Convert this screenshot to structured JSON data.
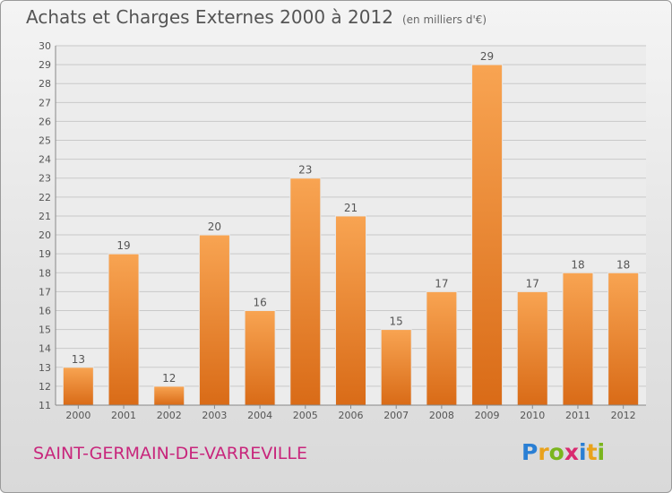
{
  "header": {
    "title": "Achats et Charges Externes 2000 à 2012",
    "unit": "(en milliers d'€)"
  },
  "footer": {
    "city": "SAINT-GERMAIN-DE-VARREVILLE",
    "logo_letters": [
      "P",
      "r",
      "o",
      "x",
      "i",
      "t",
      "i"
    ],
    "logo_colors": [
      "#2a7fd4",
      "#e9a21b",
      "#7ab51d",
      "#d92a6f",
      "#2a7fd4",
      "#e9a21b",
      "#7ab51d"
    ]
  },
  "chart_data": {
    "type": "bar",
    "categories": [
      "2000",
      "2001",
      "2002",
      "2003",
      "2004",
      "2005",
      "2006",
      "2007",
      "2008",
      "2009",
      "2010",
      "2011",
      "2012"
    ],
    "values": [
      13,
      19,
      12,
      20,
      16,
      23,
      21,
      15,
      17,
      29,
      17,
      18,
      18
    ],
    "ylim": [
      11,
      30
    ],
    "yticks": [
      11,
      12,
      13,
      14,
      15,
      16,
      17,
      18,
      19,
      20,
      21,
      22,
      23,
      24,
      25,
      26,
      27,
      28,
      29,
      30
    ],
    "grid": true,
    "bar_color": "#f08c33"
  }
}
